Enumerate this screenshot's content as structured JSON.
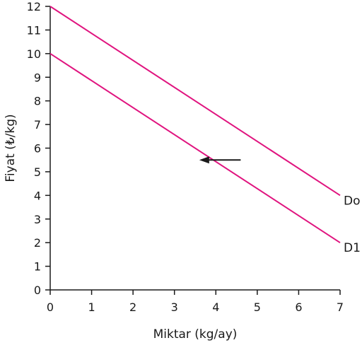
{
  "chart_data": {
    "type": "line",
    "title": "",
    "xlabel": "Miktar (kg/ay)",
    "ylabel": "Fiyat (₺/kg)",
    "xlim": [
      0,
      7
    ],
    "ylim": [
      0,
      12
    ],
    "x_ticks": [
      "0",
      "1",
      "2",
      "3",
      "4",
      "5",
      "6",
      "7"
    ],
    "y_ticks": [
      "0",
      "1",
      "2",
      "3",
      "4",
      "5",
      "6",
      "7",
      "8",
      "9",
      "10",
      "11",
      "12"
    ],
    "grid": false,
    "series": [
      {
        "name": "Do",
        "color": "#e0147f",
        "x": [
          0,
          7
        ],
        "y": [
          12,
          4
        ]
      },
      {
        "name": "D1",
        "color": "#e0147f",
        "x": [
          0,
          7
        ],
        "y": [
          10,
          2
        ]
      }
    ],
    "annotations": [
      {
        "type": "arrow",
        "from": [
          4.6,
          5.5
        ],
        "to": [
          3.6,
          5.5
        ],
        "color": "#1a1a1a"
      }
    ]
  }
}
